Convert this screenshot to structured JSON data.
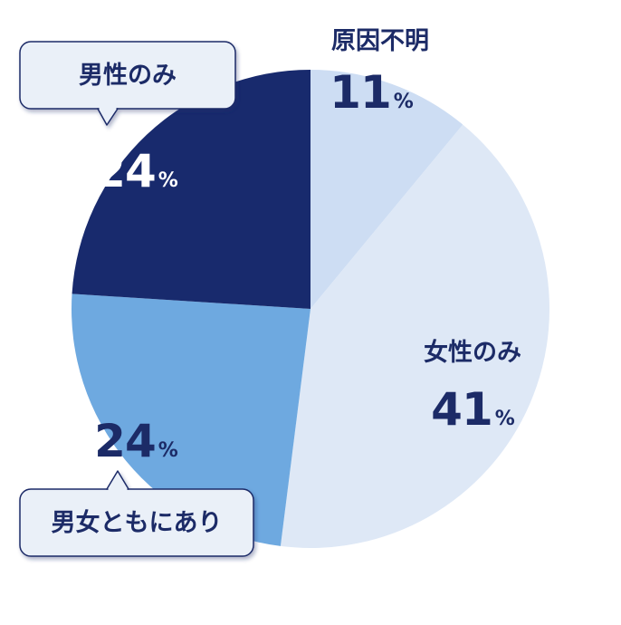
{
  "chart_data": {
    "type": "pie",
    "start": "top",
    "direction": "clockwise",
    "slices": [
      {
        "label": "原因不明",
        "value": 11,
        "unit": "%",
        "color": "#cdddf3",
        "text_color": "#1c2b67",
        "callout": false
      },
      {
        "label": "女性のみ",
        "value": 41,
        "unit": "%",
        "color": "#dee8f6",
        "text_color": "#1c2b67",
        "callout": false
      },
      {
        "label": "男女ともにあり",
        "value": 24,
        "unit": "%",
        "color": "#6ea9e0",
        "text_color": "#1c2b67",
        "callout": true
      },
      {
        "label": "男性のみ",
        "value": 24,
        "unit": "%",
        "color": "#182a6d",
        "text_color": "#ffffff",
        "callout": true
      }
    ],
    "callout_style": {
      "fill": "#eaf0f8",
      "stroke": "#1c2b67"
    }
  }
}
